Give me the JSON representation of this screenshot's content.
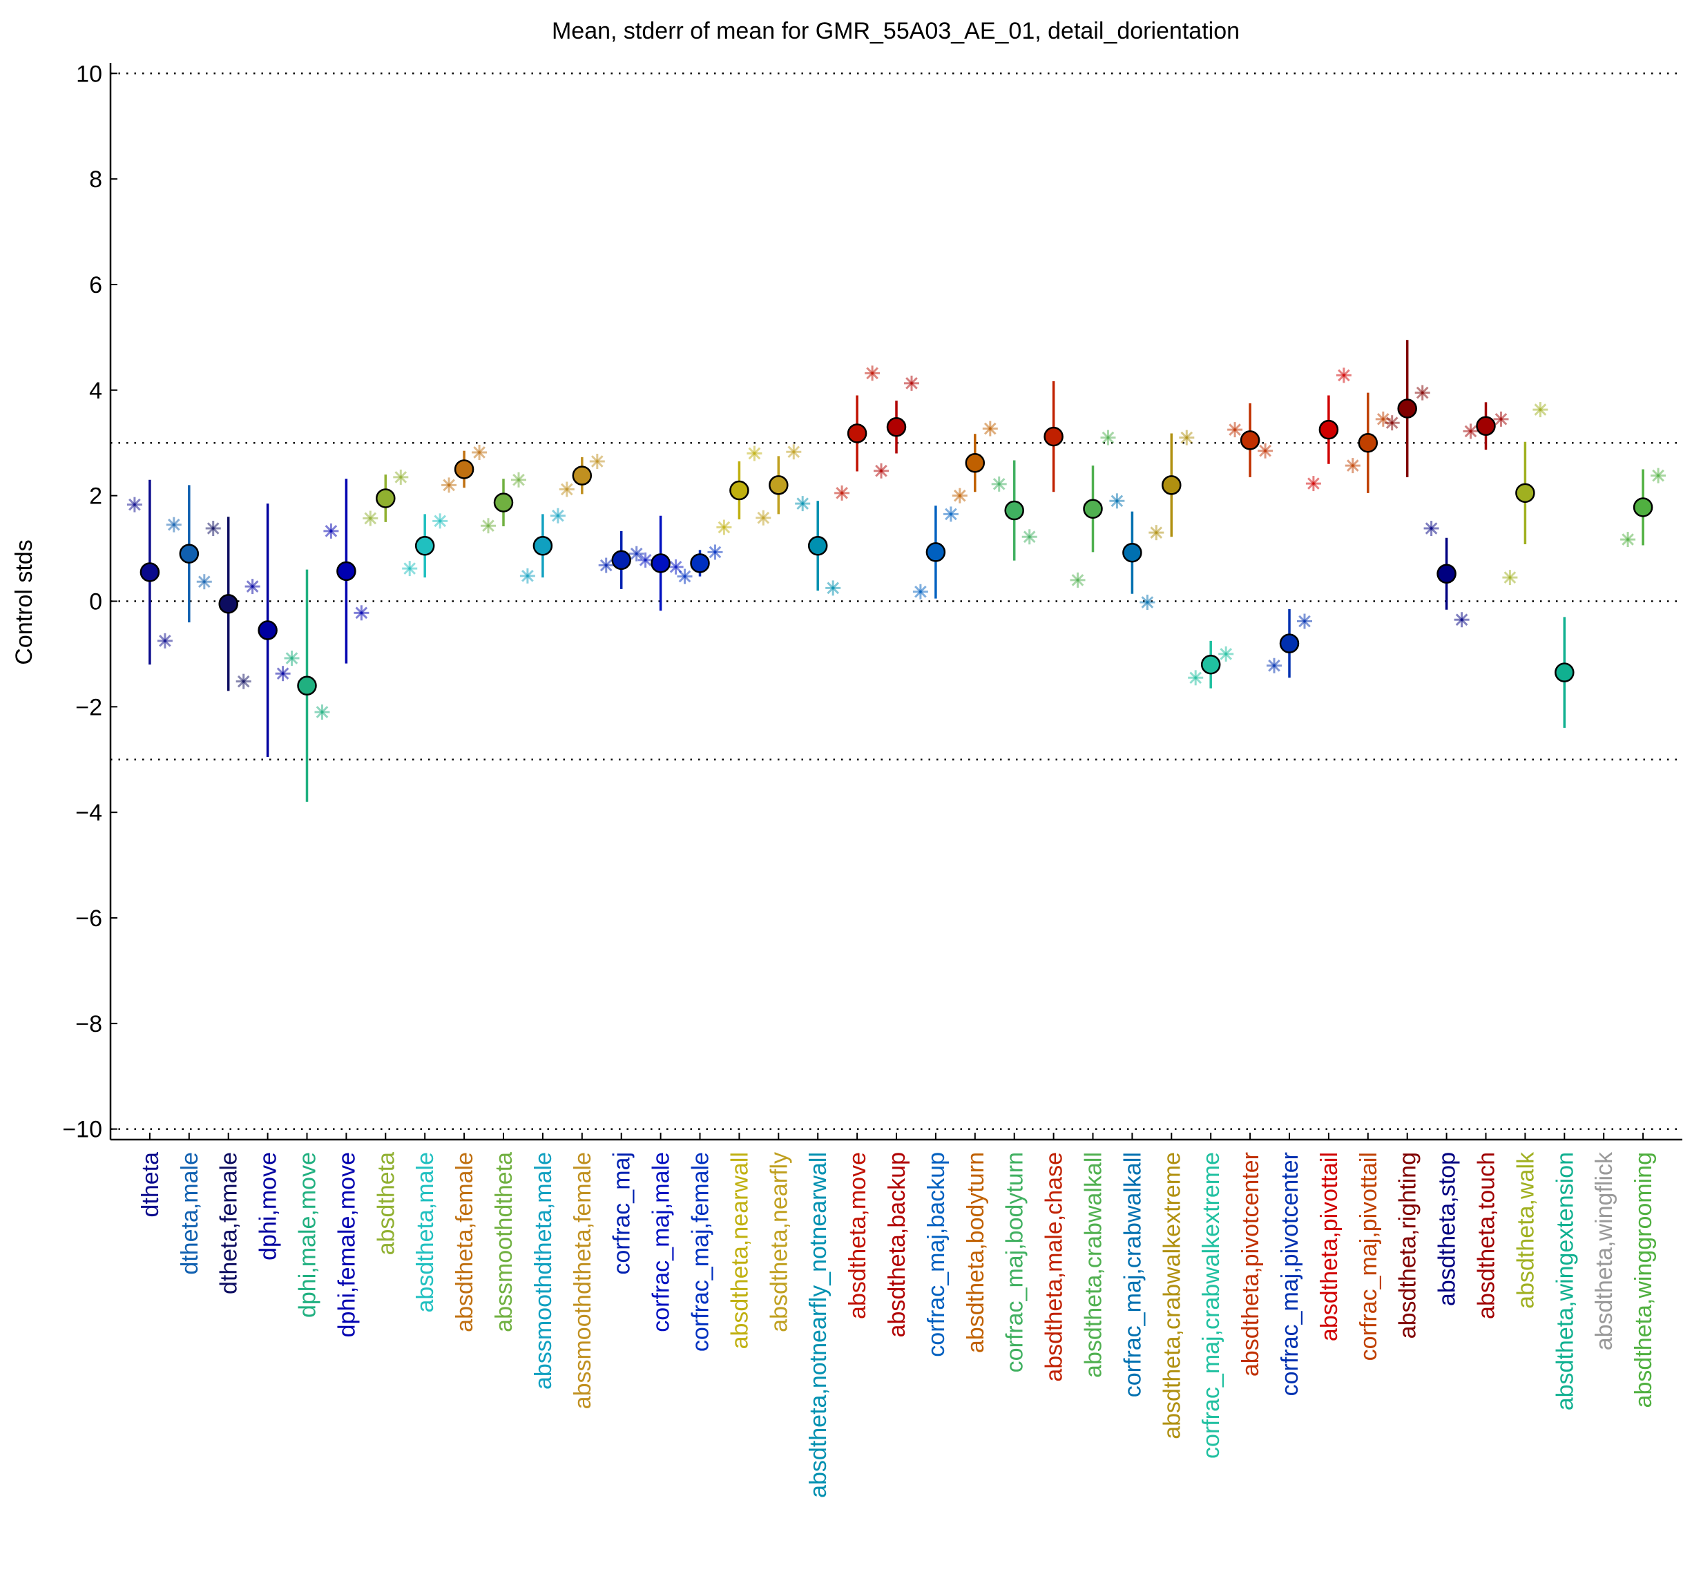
{
  "chart_data": {
    "type": "errorbar",
    "title": "Mean, stderr of mean for GMR_55A03_AE_01, detail_dorientation",
    "y_label": "Control stds",
    "ylim": [
      -10.2,
      10.2
    ],
    "yticks": [
      {
        "value": -10,
        "label": "−10"
      },
      {
        "value": -8,
        "label": "−8"
      },
      {
        "value": -6,
        "label": "−6"
      },
      {
        "value": -4,
        "label": "−4"
      },
      {
        "value": -2,
        "label": "−2"
      },
      0,
      2,
      4,
      6,
      8,
      10
    ],
    "reference_lines": [
      -10,
      -3,
      0,
      3,
      10
    ],
    "categories": [
      "dtheta",
      "dtheta,male",
      "dtheta,female",
      "dphi,move",
      "dphi,male,move",
      "dphi,female,move",
      "absdtheta",
      "absdtheta,male",
      "absdtheta,female",
      "abssmoothdtheta",
      "abssmoothdtheta,male",
      "abssmoothdtheta,female",
      "corfrac_maj",
      "corfrac_maj,male",
      "corfrac_maj,female",
      "absdtheta,nearwall",
      "absdtheta,nearfly",
      "absdtheta,notnearfly_notnearwall",
      "absdtheta,move",
      "absdtheta,backup",
      "corfrac_maj,backup",
      "absdtheta,bodyturn",
      "corfrac_maj,bodyturn",
      "absdtheta,male,chase",
      "absdtheta,crabwalkall",
      "corfrac_maj,crabwalkall",
      "absdtheta,crabwalkextreme",
      "corfrac_maj,crabwalkextreme",
      "absdtheta,pivotcenter",
      "corfrac_maj,pivotcenter",
      "absdtheta,pivottail",
      "corfrac_maj,pivottail",
      "absdtheta,righting",
      "absdtheta,stop",
      "absdtheta,touch",
      "absdtheta,walk",
      "absdtheta,wingextension",
      "absdtheta,wingflick",
      "absdtheta,winggrooming"
    ],
    "colors": [
      "#0a0a8c",
      "#1060b0",
      "#0d0d60",
      "#0000a0",
      "#20b080",
      "#0000b0",
      "#90b030",
      "#20c0c0",
      "#c07010",
      "#70b040",
      "#10a0c0",
      "#c09020",
      "#0020b0",
      "#0010c0",
      "#0030c0",
      "#c0b010",
      "#c0a020",
      "#0090b0",
      "#c01000",
      "#b00000",
      "#0060c0",
      "#c06000",
      "#40b060",
      "#c02000",
      "#50b050",
      "#0070b0",
      "#b09010",
      "#20c0a0",
      "#c03000",
      "#0030b0",
      "#d00000",
      "#c04000",
      "#800000",
      "#000080",
      "#a00000",
      "#a0b020",
      "#10b090",
      "#999999",
      "#50b040"
    ],
    "values": [
      0.55,
      0.9,
      -0.05,
      -0.55,
      -1.6,
      0.57,
      1.95,
      1.05,
      2.5,
      1.87,
      1.05,
      2.38,
      0.78,
      0.72,
      0.72,
      2.1,
      2.2,
      1.05,
      3.18,
      3.3,
      0.93,
      2.62,
      1.72,
      3.12,
      1.75,
      0.92,
      2.2,
      -1.2,
      3.05,
      -0.8,
      3.25,
      3.0,
      3.65,
      0.52,
      3.32,
      2.05,
      -1.35,
      null,
      1.78
    ],
    "errors": [
      1.75,
      1.3,
      1.65,
      2.4,
      2.2,
      1.75,
      0.45,
      0.6,
      0.35,
      0.45,
      0.6,
      0.35,
      0.55,
      0.9,
      0.25,
      0.55,
      0.55,
      0.85,
      0.72,
      0.5,
      0.88,
      0.55,
      0.95,
      1.05,
      0.82,
      0.78,
      0.98,
      0.45,
      0.7,
      0.65,
      0.65,
      0.95,
      1.3,
      0.68,
      0.45,
      0.97,
      1.05,
      null,
      0.72
    ],
    "left_values": [
      1.83,
      1.45,
      1.38,
      0.28,
      -1.08,
      1.33,
      1.57,
      0.62,
      2.2,
      1.43,
      0.48,
      2.12,
      0.68,
      0.78,
      0.47,
      1.4,
      1.58,
      1.85,
      2.05,
      2.47,
      0.18,
      2.0,
      2.22,
      null,
      0.4,
      1.9,
      1.3,
      -1.45,
      3.25,
      -1.22,
      2.23,
      2.57,
      3.38,
      1.38,
      3.22,
      0.45,
      null,
      null,
      1.17
    ],
    "right_values": [
      -0.75,
      0.37,
      -1.52,
      -1.37,
      -2.1,
      -0.22,
      2.35,
      1.52,
      2.82,
      2.3,
      1.62,
      2.65,
      0.9,
      0.65,
      0.93,
      2.8,
      2.83,
      0.25,
      4.32,
      4.13,
      1.65,
      3.27,
      1.22,
      null,
      3.1,
      -0.02,
      3.1,
      -1.0,
      2.85,
      -0.38,
      4.28,
      3.45,
      3.95,
      -0.35,
      3.45,
      3.63,
      null,
      null,
      2.38
    ]
  }
}
